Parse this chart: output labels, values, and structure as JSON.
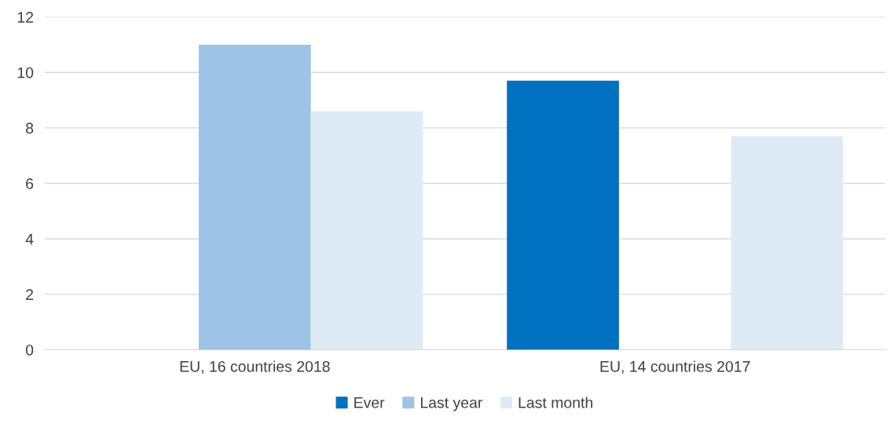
{
  "chart_data": {
    "type": "bar",
    "categories": [
      "EU, 16 countries 2018",
      "EU, 14 countries 2017"
    ],
    "series": [
      {
        "name": "Ever",
        "color": "#0070c0",
        "values": [
          null,
          9.7
        ]
      },
      {
        "name": "Last year",
        "color": "#9dc3e6",
        "values": [
          11.0,
          null
        ]
      },
      {
        "name": "Last month",
        "color": "#deebf7",
        "values": [
          8.6,
          7.7
        ]
      }
    ],
    "ylim": [
      0,
      12
    ],
    "yticks": [
      0,
      2,
      4,
      6,
      8,
      10,
      12
    ],
    "grid": "y",
    "legend": "bottom"
  }
}
